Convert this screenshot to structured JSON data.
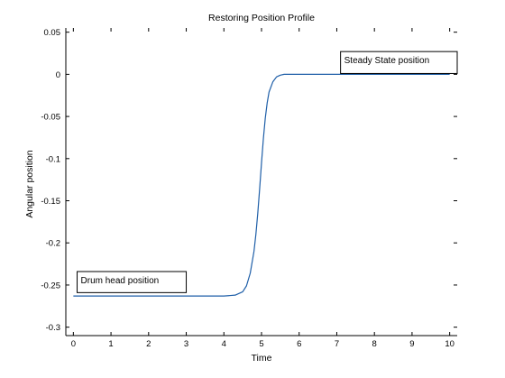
{
  "chart_data": {
    "type": "line",
    "title": "Restoring Position Profile",
    "xlabel": "Time",
    "ylabel": "Angular position",
    "xlim": [
      -0.2,
      10.2
    ],
    "ylim": [
      -0.31,
      0.055
    ],
    "x_ticks": [
      0,
      1,
      2,
      3,
      4,
      5,
      6,
      7,
      8,
      9,
      10
    ],
    "x_tick_labels": [
      "0",
      "1",
      "2",
      "3",
      "4",
      "5",
      "6",
      "7",
      "8",
      "9",
      "10"
    ],
    "y_ticks": [
      0.05,
      0,
      -0.05,
      -0.1,
      -0.15,
      -0.2,
      -0.25,
      -0.3
    ],
    "y_tick_labels": [
      "0.05",
      "0",
      "-0.05",
      "-0.1",
      "-0.15",
      "-0.2",
      "-0.25",
      "-0.3"
    ],
    "grid": false,
    "line_color": "#1f5fa8",
    "series": [
      {
        "x": [
          0,
          1,
          2,
          3,
          4,
          4.3,
          4.5,
          4.6,
          4.7,
          4.8,
          4.85,
          4.9,
          4.95,
          5.0,
          5.05,
          5.1,
          5.15,
          5.2,
          5.3,
          5.4,
          5.5,
          5.6,
          5.8,
          6,
          7,
          8,
          9,
          10
        ],
        "y": [
          -0.263,
          -0.263,
          -0.263,
          -0.263,
          -0.263,
          -0.262,
          -0.258,
          -0.251,
          -0.236,
          -0.21,
          -0.19,
          -0.165,
          -0.136,
          -0.105,
          -0.076,
          -0.052,
          -0.034,
          -0.021,
          -0.009,
          -0.003,
          -0.001,
          0,
          0,
          0,
          0,
          0,
          0,
          0
        ]
      }
    ],
    "annotations": [
      {
        "text": "Steady State position",
        "x": 7.1,
        "y": 0.027,
        "x2": 10.2,
        "y2": 0.001
      },
      {
        "text": "Drum head position",
        "x": 0.1,
        "y": -0.234,
        "x2": 3.0,
        "y2": -0.259
      }
    ]
  }
}
